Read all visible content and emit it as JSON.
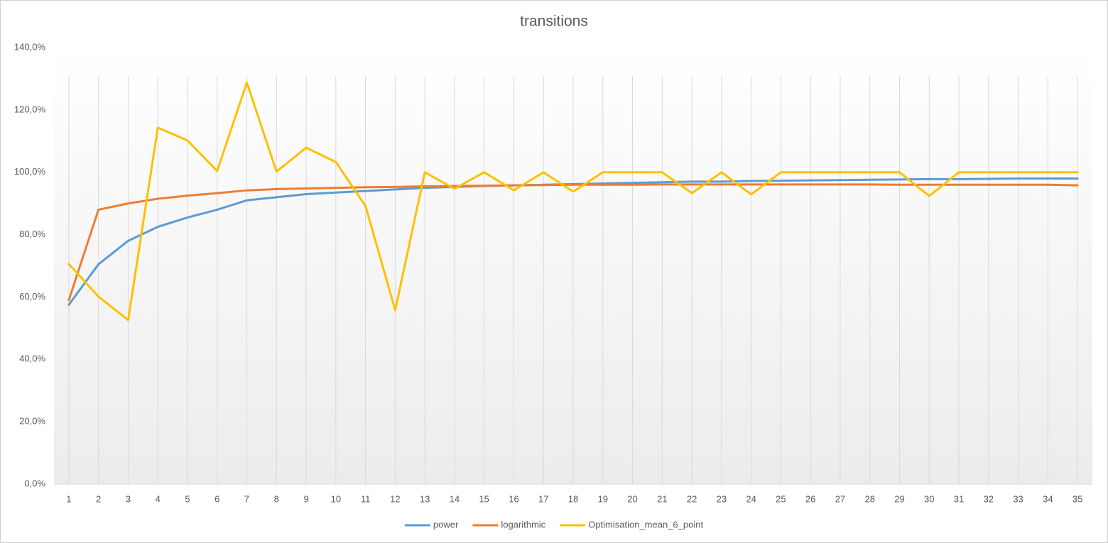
{
  "chart_data": {
    "type": "line",
    "title": "transitions",
    "categories": [
      "1",
      "2",
      "3",
      "4",
      "5",
      "6",
      "7",
      "8",
      "9",
      "10",
      "11",
      "12",
      "13",
      "14",
      "15",
      "16",
      "17",
      "18",
      "19",
      "20",
      "21",
      "22",
      "23",
      "24",
      "25",
      "26",
      "27",
      "28",
      "29",
      "30",
      "31",
      "32",
      "33",
      "34",
      "35"
    ],
    "series": [
      {
        "name": "power",
        "color": "#5b9bd5",
        "values": [
          57.5,
          70.5,
          78,
          82.5,
          85.5,
          88,
          91,
          92,
          93,
          93.5,
          94,
          94.5,
          95,
          95.3,
          95.6,
          95.8,
          96,
          96.2,
          96.4,
          96.6,
          96.8,
          97,
          97,
          97.2,
          97.3,
          97.4,
          97.5,
          97.6,
          97.7,
          97.8,
          97.8,
          97.9,
          98,
          98,
          98
        ]
      },
      {
        "name": "logarithmic",
        "color": "#ed7d31",
        "values": [
          59,
          88,
          90,
          91.5,
          92.5,
          93.3,
          94.2,
          94.6,
          94.8,
          95,
          95.2,
          95.3,
          95.5,
          95.6,
          95.7,
          95.8,
          95.9,
          96,
          96,
          96,
          96.1,
          96.1,
          96.1,
          96.1,
          96.1,
          96.1,
          96.1,
          96.1,
          96,
          96,
          96,
          96,
          96,
          96,
          95.8
        ]
      },
      {
        "name": "Optimisation_mean_6_point",
        "color": "#ffc000",
        "values": [
          70.6,
          60.1,
          52.6,
          114.3,
          110.2,
          100.4,
          128.8,
          100.2,
          107.9,
          103.3,
          89.2,
          55.8,
          100,
          94.7,
          100,
          94.2,
          100,
          93.8,
          100,
          100,
          100,
          93.3,
          100,
          92.9,
          100,
          100,
          100,
          100,
          100,
          92.4,
          100,
          100,
          100,
          100,
          100
        ]
      }
    ],
    "ylim": [
      0,
      140
    ],
    "yticks": [
      {
        "value": 0,
        "label": "0,0%"
      },
      {
        "value": 20,
        "label": "20,0%"
      },
      {
        "value": 40,
        "label": "40,0%"
      },
      {
        "value": 60,
        "label": "60,0%"
      },
      {
        "value": 80,
        "label": "80,0%"
      },
      {
        "value": 100,
        "label": "100,0%"
      },
      {
        "value": 120,
        "label": "120,0%"
      },
      {
        "value": 140,
        "label": "140,0%"
      }
    ],
    "grid": "vertical",
    "legend": "bottom"
  }
}
